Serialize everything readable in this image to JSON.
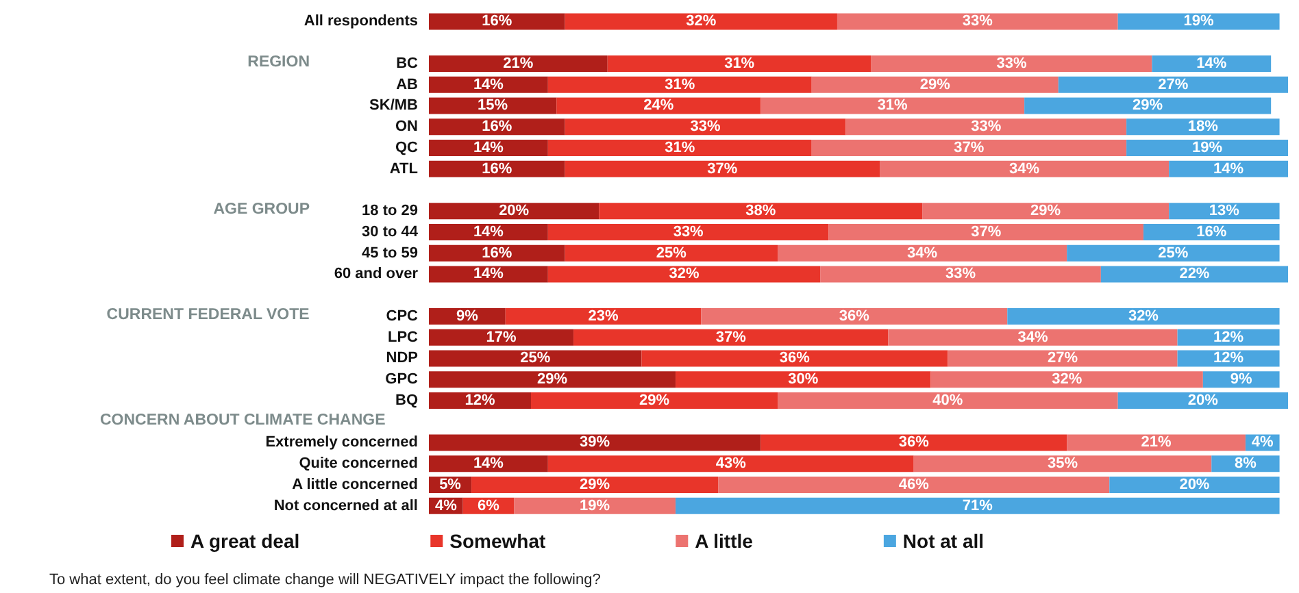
{
  "chart_data": {
    "type": "bar",
    "orientation": "horizontal",
    "stacked": true,
    "legend": "bottom",
    "title": "To what extent, do you feel climate change will NEGATIVELY impact the following?",
    "annotations": [
      "REGION",
      "AGE GROUP",
      "CURRENT FEDERAL VOTE",
      "CONCERN ABOUT CLIMATE CHANGE"
    ],
    "categories": [
      "All respondents",
      "BC",
      "AB",
      "SK/MB",
      "ON",
      "QC",
      "ATL",
      "18 to 29",
      "30 to 44",
      "45 to 59",
      "60 and over",
      "CPC",
      "LPC",
      "NDP",
      "GPC",
      "BQ",
      "Extremely concerned",
      "Quite concerned",
      "A little concerned",
      "Not concerned at all"
    ],
    "series": [
      {
        "name": "A great deal",
        "color": "#b01f1a",
        "values": [
          16,
          21,
          14,
          15,
          16,
          14,
          16,
          20,
          14,
          16,
          14,
          9,
          17,
          25,
          29,
          12,
          39,
          14,
          5,
          4
        ],
        "value_labels": [
          "16%",
          "21%",
          "14%",
          "15%",
          "16%",
          "14%",
          "16%",
          "20%",
          "14%",
          "16%",
          "14%",
          "9%",
          "17%",
          "25%",
          "29%",
          "12%",
          "39%",
          "14%",
          "5%",
          "4%"
        ]
      },
      {
        "name": "Somewhat",
        "color": "#e8352a",
        "values": [
          32,
          31,
          31,
          24,
          33,
          31,
          37,
          38,
          33,
          25,
          32,
          23,
          37,
          36,
          30,
          29,
          36,
          43,
          29,
          6
        ],
        "value_labels": [
          "32%",
          "31%",
          "31%",
          "24%",
          "33%",
          "31%",
          "37%",
          "38%",
          "33%",
          "25%",
          "32%",
          "23%",
          "37%",
          "36%",
          "30%",
          "29%",
          "36%",
          "43%",
          "29%",
          "6%"
        ]
      },
      {
        "name": "A little",
        "color": "#ec7370",
        "values": [
          33,
          33,
          29,
          31,
          33,
          37,
          34,
          29,
          37,
          34,
          33,
          36,
          34,
          27,
          32,
          40,
          21,
          35,
          46,
          19
        ],
        "value_labels": [
          "33%",
          "33%",
          "29%",
          "31%",
          "33%",
          "37%",
          "34%",
          "29%",
          "37%",
          "34%",
          "33%",
          "36%",
          "34%",
          "27%",
          "32%",
          "40%",
          "21%",
          "35%",
          "46%",
          "19%"
        ]
      },
      {
        "name": "Not at all",
        "color": "#4ba6e0",
        "values": [
          19,
          14,
          27,
          29,
          18,
          19,
          14,
          13,
          16,
          25,
          22,
          32,
          12,
          12,
          9,
          20,
          4,
          8,
          20,
          71
        ],
        "value_labels": [
          "19%",
          "14%",
          "27%",
          "29%",
          "18%",
          "19%",
          "14%",
          "13%",
          "16%",
          "25%",
          "22%",
          "32%",
          "12%",
          "12%",
          "9%",
          "20%",
          "4%",
          "8%",
          "20%",
          "71%"
        ]
      }
    ]
  }
}
